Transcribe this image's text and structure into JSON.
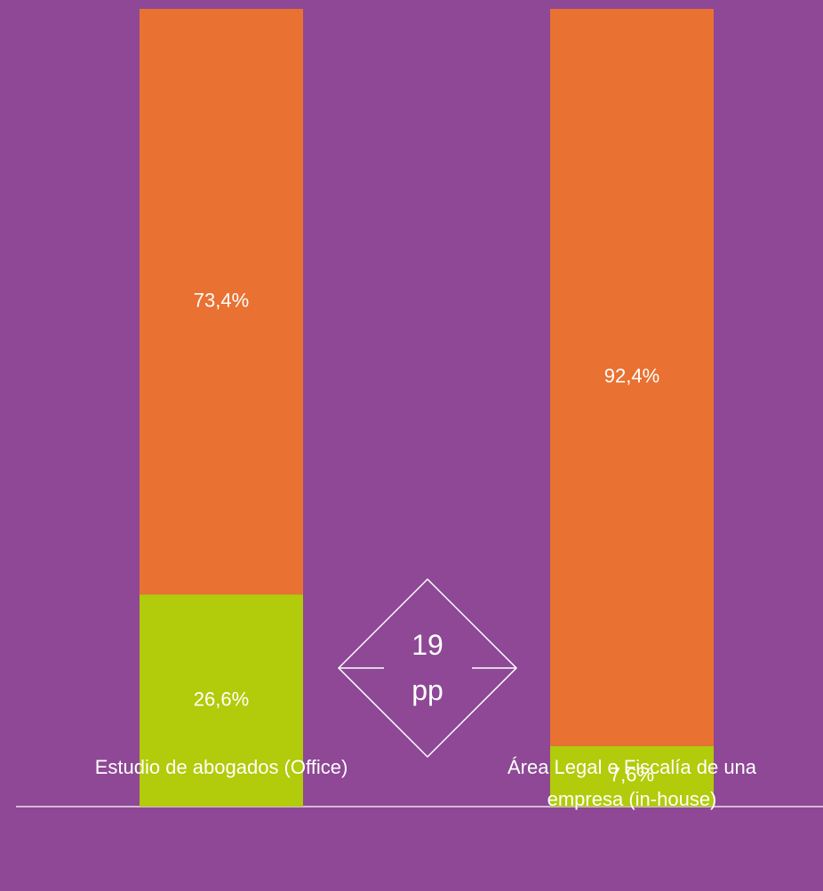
{
  "chart_data": {
    "type": "stacked_bar",
    "categories": [
      "Estudio de abogados (Office)",
      "Área Legal o Fiscalía de una empresa (in-house)"
    ],
    "series": [
      {
        "color": "#b2cb0a",
        "values": [
          26.6,
          7.6
        ],
        "value_labels": [
          "26,6%",
          "7,6%"
        ]
      },
      {
        "color": "#e97132",
        "values": [
          73.4,
          92.4
        ],
        "value_labels": [
          "73,4%",
          "92,4%"
        ]
      }
    ],
    "ylim": [
      0,
      100
    ],
    "annotation": "19 pp",
    "background": "#8e4896"
  }
}
